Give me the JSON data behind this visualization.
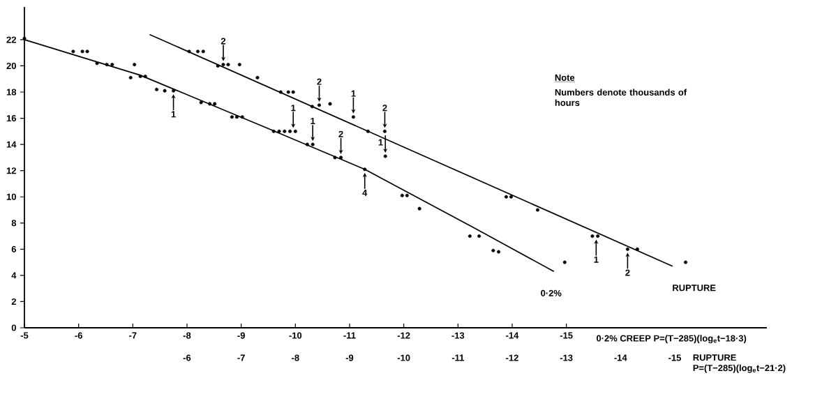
{
  "chart_data": {
    "type": "scatter",
    "marker": "circle",
    "xlabel": "0·2% CREEP P=(T−285)(log$_{e}$t−18·3)",
    "x2label": "RUPTURE P=(T−285)(log$_{e}$t−21·2)",
    "xlim": [
      -5,
      -18.7
    ],
    "xticks": [
      -5,
      -6,
      -7,
      -8,
      -9,
      -10,
      -11,
      -12,
      -13,
      -14,
      -15
    ],
    "x2lim": [
      -3,
      -16.7
    ],
    "x2ticks": [
      -6,
      -7,
      -8,
      -9,
      -10,
      -11,
      -12,
      -13,
      -14,
      -15
    ],
    "ylim": [
      0,
      24.5
    ],
    "yticks": [
      0,
      2,
      4,
      6,
      8,
      10,
      12,
      14,
      16,
      18,
      20,
      22
    ],
    "series": [
      {
        "color": "#000000",
        "x": [
          -5.0,
          -5.9,
          -6.07,
          -6.16,
          -6.34,
          -6.52,
          -6.62,
          -6.96,
          -7.03,
          -7.14,
          -7.23,
          -7.44,
          -7.59,
          -7.75,
          -8.26,
          -8.42,
          -8.51,
          -8.83,
          -8.92,
          -9.02,
          -9.6,
          -9.7,
          -9.8,
          -9.9,
          -10.0,
          -10.22,
          -10.32,
          -10.73,
          -10.84,
          -11.28,
          -11.97,
          -12.06,
          -12.29,
          -13.22,
          -13.39,
          -13.65,
          -13.75,
          -14.97
        ],
        "values": [
          22.1,
          21.1,
          21.1,
          21.1,
          20.2,
          20.1,
          20.1,
          19.1,
          20.1,
          19.2,
          19.2,
          18.2,
          18.1,
          18.1,
          17.2,
          17.1,
          17.1,
          16.1,
          16.1,
          16.1,
          15.0,
          15.0,
          15.0,
          15.0,
          15.0,
          14.0,
          14.0,
          13.0,
          13.0,
          12.1,
          10.1,
          10.1,
          9.1,
          7.0,
          7.0,
          5.9,
          5.8,
          5.0
        ]
      },
      {
        "color": "#000000",
        "x": [
          -8.04,
          -8.2,
          -8.3,
          -8.57,
          -8.67,
          -8.76,
          -8.97,
          -9.3,
          -9.73,
          -9.87,
          -9.96,
          -10.31,
          -10.44,
          -10.64,
          -11.07,
          -11.34,
          -11.65,
          -11.66,
          -13.89,
          -13.98,
          -14.47,
          -15.48,
          -15.58,
          -16.13,
          -16.31,
          -17.2
        ],
        "values": [
          21.1,
          21.1,
          21.1,
          20.0,
          20.1,
          20.1,
          20.1,
          19.1,
          18.0,
          18.0,
          18.0,
          16.9,
          17.0,
          17.1,
          16.1,
          15.0,
          15.0,
          13.1,
          10.0,
          10.0,
          9.0,
          7.0,
          7.0,
          6.0,
          6.0,
          5.0
        ]
      },
      {
        "type": "line",
        "name": "0·2%",
        "color": "#000000",
        "marker": "none",
        "line_style": "solid",
        "x": [
          -5.0,
          -7.13,
          -9.45,
          -11.28,
          -13.31,
          -14.77
        ],
        "values": [
          22.0,
          19.3,
          15.3,
          12.1,
          7.6,
          4.3
        ]
      },
      {
        "type": "line",
        "name": "RUPTURE",
        "color": "#000000",
        "marker": "none",
        "line_style": "solid",
        "x": [
          -7.31,
          -16.96
        ],
        "values": [
          22.4,
          4.7
        ]
      }
    ],
    "annotations": [
      "Note",
      "Numbers denote thousands of hours",
      {
        "text": "1",
        "x": -7.75,
        "y": 18.1
      },
      {
        "text": "2",
        "x": -8.67,
        "y": 20.1
      },
      {
        "text": "1",
        "x": -9.96,
        "y": 15.0
      },
      {
        "text": "1",
        "x": -10.32,
        "y": 14.0
      },
      {
        "text": "2",
        "x": -10.44,
        "y": 17.0
      },
      {
        "text": "2",
        "x": -10.84,
        "y": 13.0
      },
      {
        "text": "1",
        "x": -11.07,
        "y": 16.1
      },
      {
        "text": "2",
        "x": -11.65,
        "y": 15.0
      },
      {
        "text": "1",
        "x": -11.66,
        "y": 13.1
      },
      {
        "text": "4",
        "x": -11.28,
        "y": 12.1
      },
      {
        "text": "1",
        "x": -15.55,
        "y": 7.0
      },
      {
        "text": "2",
        "x": -16.13,
        "y": 6.0
      }
    ]
  }
}
